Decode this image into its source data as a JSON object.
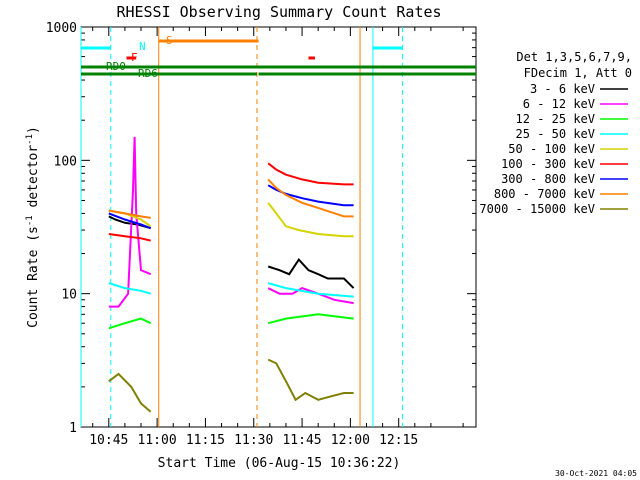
{
  "chart_data": {
    "type": "line",
    "title": "RHESSI Observing Summary Count Rates",
    "xlabel": "Start Time (06-Aug-15 10:36:22)",
    "ylabel_main": "Count Rate (s",
    "ylabel_sup1": "-1",
    "ylabel_mid": " detector",
    "ylabel_sup2": "-1",
    "ylabel_end": ")",
    "y_scale": "log",
    "ylim": [
      1,
      1000
    ],
    "xlim_min": [
      36.37,
      159.0
    ],
    "x_tick_labels": [
      "10:45",
      "11:00",
      "11:15",
      "11:30",
      "11:45",
      "12:00",
      "12:15"
    ],
    "x_tick_min": [
      45,
      60,
      75,
      90,
      105,
      120,
      135
    ],
    "y_tick_labels": [
      "1",
      "10",
      "100",
      "1000"
    ],
    "y_tick_values": [
      1,
      10,
      100,
      1000
    ],
    "legend_header": [
      "Det 1,3,5,6,7,9,",
      "FDecim 1, Att 0"
    ],
    "legend_placement": "right",
    "footer_date": "30-Oct-2021 04:05",
    "series": [
      {
        "name": "3 - 6 keV",
        "color": "#000000",
        "seg1": [
          [
            45,
            38
          ],
          [
            47,
            36
          ],
          [
            50,
            34
          ],
          [
            54,
            33
          ],
          [
            58,
            31
          ]
        ],
        "seg2": [
          [
            94.5,
            16
          ],
          [
            98,
            15
          ],
          [
            101,
            14
          ],
          [
            104,
            18
          ],
          [
            107,
            15
          ],
          [
            110,
            14
          ],
          [
            113,
            13
          ],
          [
            118,
            13
          ],
          [
            121,
            11
          ]
        ]
      },
      {
        "name": "6 - 12 keV",
        "color": "#ff00ff",
        "seg1": [
          [
            45,
            8
          ],
          [
            48,
            8
          ],
          [
            51,
            10
          ],
          [
            52.5,
            60
          ],
          [
            53,
            150
          ],
          [
            53.5,
            40
          ],
          [
            55,
            15
          ],
          [
            58,
            14
          ]
        ],
        "seg2": [
          [
            94.5,
            11
          ],
          [
            98,
            10
          ],
          [
            102,
            10
          ],
          [
            105,
            11
          ],
          [
            110,
            10
          ],
          [
            115,
            9
          ],
          [
            121,
            8.5
          ]
        ]
      },
      {
        "name": "12 - 25 keV",
        "color": "#00ff00",
        "seg1": [
          [
            45,
            5.5
          ],
          [
            50,
            6
          ],
          [
            55,
            6.5
          ],
          [
            58,
            6
          ]
        ],
        "seg2": [
          [
            94.5,
            6
          ],
          [
            100,
            6.5
          ],
          [
            110,
            7
          ],
          [
            121,
            6.5
          ]
        ]
      },
      {
        "name": "25 - 50 keV",
        "color": "#00ffff",
        "seg1": [
          [
            45,
            12
          ],
          [
            50,
            11
          ],
          [
            55,
            10.5
          ],
          [
            58,
            10
          ]
        ],
        "seg2": [
          [
            94.5,
            12
          ],
          [
            100,
            11
          ],
          [
            110,
            10
          ],
          [
            121,
            9.5
          ]
        ]
      },
      {
        "name": "50 - 100 keV",
        "color": "#d4d400",
        "seg1": [
          [
            45,
            42
          ],
          [
            50,
            40
          ],
          [
            55,
            36
          ],
          [
            58,
            32
          ]
        ],
        "seg2": [
          [
            94.5,
            48
          ],
          [
            97,
            40
          ],
          [
            100,
            32
          ],
          [
            104,
            30
          ],
          [
            110,
            28
          ],
          [
            118,
            27
          ],
          [
            121,
            27
          ]
        ]
      },
      {
        "name": "100 - 300 keV",
        "color": "#ff0000",
        "seg1": [
          [
            45,
            28
          ],
          [
            50,
            27
          ],
          [
            55,
            26
          ],
          [
            58,
            25
          ]
        ],
        "seg2": [
          [
            94.5,
            95
          ],
          [
            97,
            85
          ],
          [
            100,
            78
          ],
          [
            105,
            72
          ],
          [
            110,
            68
          ],
          [
            118,
            66
          ],
          [
            121,
            66
          ]
        ]
      },
      {
        "name": "300 - 800 keV",
        "color": "#0000ff",
        "seg1": [
          [
            45,
            40
          ],
          [
            50,
            36
          ],
          [
            55,
            33
          ],
          [
            58,
            31
          ]
        ],
        "seg2": [
          [
            94.5,
            65
          ],
          [
            97,
            60
          ],
          [
            100,
            56
          ],
          [
            105,
            52
          ],
          [
            110,
            49
          ],
          [
            118,
            46
          ],
          [
            121,
            46
          ]
        ]
      },
      {
        "name": "800 - 7000 keV",
        "color": "#ff8000",
        "seg1": [
          [
            45,
            42
          ],
          [
            50,
            40
          ],
          [
            55,
            38
          ],
          [
            58,
            37
          ]
        ],
        "seg2": [
          [
            94.5,
            72
          ],
          [
            97,
            62
          ],
          [
            100,
            55
          ],
          [
            105,
            48
          ],
          [
            110,
            44
          ],
          [
            118,
            38
          ],
          [
            121,
            38
          ]
        ]
      },
      {
        "name": "7000 - 15000 keV",
        "color": "#808000",
        "seg1": [
          [
            45,
            2.2
          ],
          [
            48,
            2.5
          ],
          [
            52,
            2.0
          ],
          [
            55,
            1.5
          ],
          [
            58,
            1.3
          ]
        ],
        "seg2": [
          [
            94.5,
            3.2
          ],
          [
            97,
            3.0
          ],
          [
            100,
            2.2
          ],
          [
            103,
            1.6
          ],
          [
            106,
            1.8
          ],
          [
            110,
            1.6
          ],
          [
            114,
            1.7
          ],
          [
            118,
            1.8
          ],
          [
            121,
            1.8
          ]
        ]
      }
    ],
    "annotations": {
      "N_label": "N",
      "F_label": "F",
      "S_label": "S",
      "RD0_label": "RD0",
      "RD6_label": "RD6",
      "night_bars": [
        [
          36.37,
          45.6
        ],
        [
          127.0,
          136.2
        ]
      ],
      "saa_bar": [
        60.5,
        91.5
      ],
      "flare_bars": [
        [
          50.5,
          53.5
        ],
        [
          107.0,
          109.0
        ]
      ],
      "rd0_bar": [
        36.37,
        159.0
      ],
      "rd6_bar_segments": [
        [
          36.37,
          91.0
        ],
        [
          91.5,
          159.0
        ]
      ],
      "cyan_solid_lines": [
        36.37,
        127.0
      ],
      "cyan_dashed_lines": [
        45.6,
        136.2
      ],
      "orange_solid_lines": [
        60.5,
        123.0
      ],
      "orange_dashed_lines": [
        91.0
      ]
    }
  }
}
